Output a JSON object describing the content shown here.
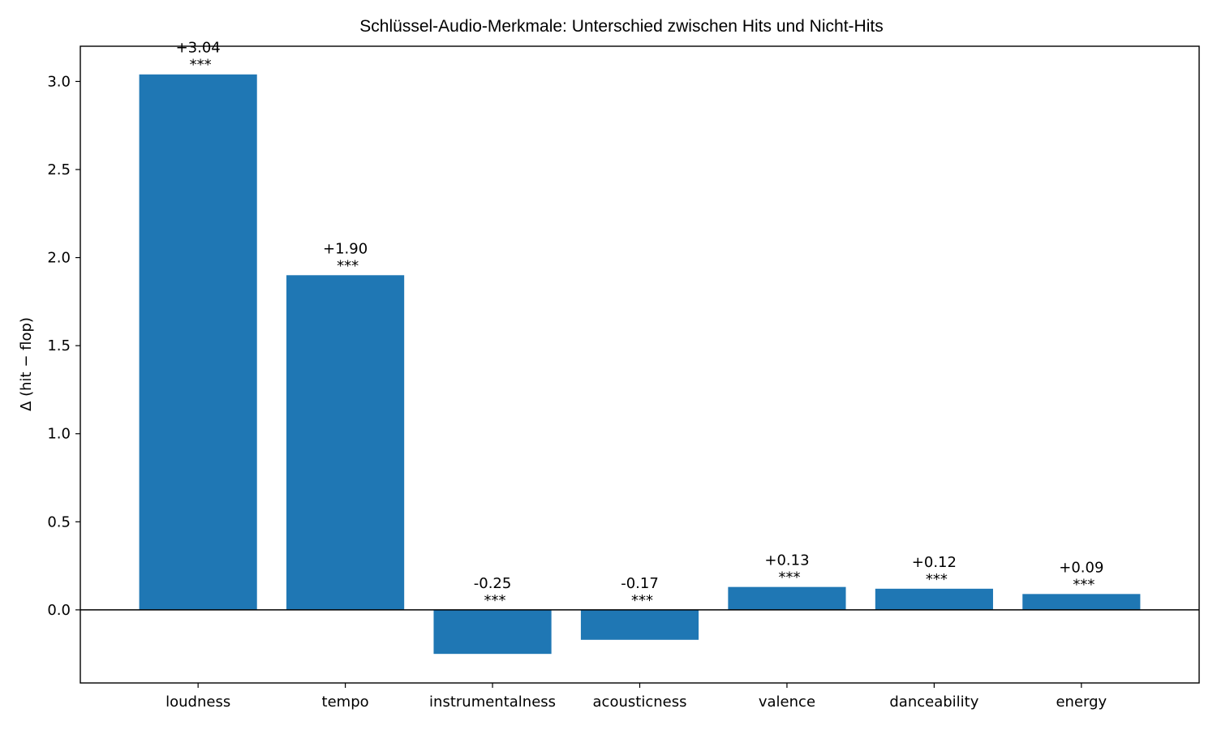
{
  "chart_data": {
    "type": "bar",
    "title": "Schlüssel-Audio-Merkmale: Unterschied zwischen Hits und Nicht-Hits",
    "xlabel": "",
    "ylabel": "Δ (hit − flop)",
    "categories": [
      "loudness",
      "tempo",
      "instrumentalness",
      "acousticness",
      "valence",
      "danceability",
      "energy"
    ],
    "values": [
      3.04,
      1.9,
      -0.25,
      -0.17,
      0.13,
      0.12,
      0.09
    ],
    "value_labels": [
      "+3.04",
      "+1.90",
      "-0.25",
      "-0.17",
      "+0.13",
      "+0.12",
      "+0.09"
    ],
    "significance": [
      "***",
      "***",
      "***",
      "***",
      "***",
      "***",
      "***"
    ],
    "ylim": [
      -0.415,
      3.2
    ],
    "yticks": [
      0.0,
      0.5,
      1.0,
      1.5,
      2.0,
      2.5,
      3.0
    ],
    "ytick_labels": [
      "0.0",
      "0.5",
      "1.0",
      "1.5",
      "2.0",
      "2.5",
      "3.0"
    ],
    "bar_color": "#1f77b4",
    "zero_line": true,
    "grid": false
  }
}
